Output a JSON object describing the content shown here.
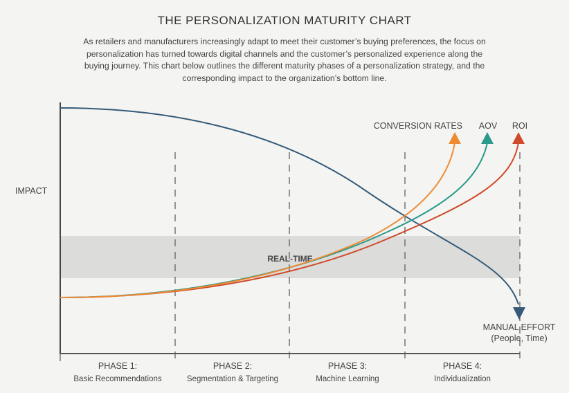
{
  "title": "THE PERSONALIZATION MATURITY CHART",
  "intro": "As retailers and manufacturers increasingly adapt to meet their customer’s buying preferences, the focus on personalization has turned towards digital channels and the customer’s personalized experience along the buying journey. This chart below outlines the different maturity phases of a personalization strategy, and the corresponding impact to the organization’s bottom line.",
  "y_axis_label": "IMPACT",
  "band_label": "REAL-TIME",
  "series": [
    {
      "label": "CONVERSION RATES",
      "color": "#ee8a32"
    },
    {
      "label": "AOV",
      "color": "#2a9a8a"
    },
    {
      "label": "ROI",
      "color": "#cf4a2a"
    }
  ],
  "manual_effort": {
    "label": "MANUAL EFFORT",
    "sub": "(People, Time)",
    "color": "#345a78"
  },
  "phases": [
    {
      "name": "PHASE 1:",
      "desc": "Basic Recommendations"
    },
    {
      "name": "PHASE 2:",
      "desc": "Segmentation & Targeting"
    },
    {
      "name": "PHASE 3:",
      "desc": "Machine Learning"
    },
    {
      "name": "PHASE 4:",
      "desc": "Individualization"
    }
  ],
  "colors": {
    "band": "#dcdddb",
    "axis": "#444444",
    "background": "#f4f4f2"
  }
}
